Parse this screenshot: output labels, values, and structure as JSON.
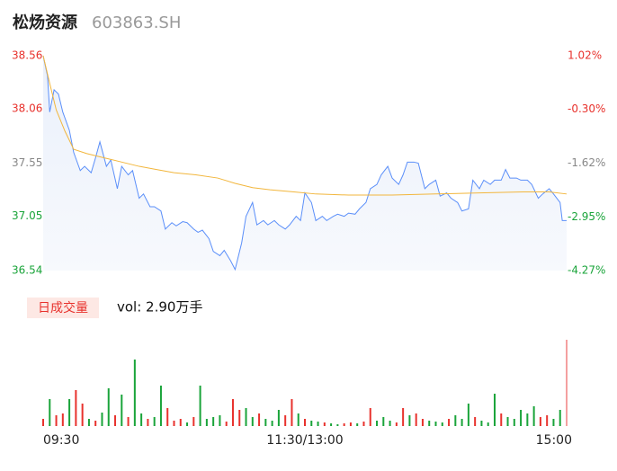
{
  "chart_data": {
    "type": "intraday",
    "title": "松炀资源",
    "subtitle": "603863.SH",
    "xlim": [
      0,
      240
    ],
    "xticks": [
      {
        "value": 0,
        "label": "09:30"
      },
      {
        "value": 120,
        "label": "11:30/13:00"
      },
      {
        "value": 240,
        "label": "15:00"
      }
    ],
    "ylim": [
      36.54,
      38.56
    ],
    "yticks": [
      38.56,
      38.06,
      37.55,
      37.05,
      36.54
    ],
    "y2lim": [
      -4.27,
      1.02
    ],
    "y2ticks": [
      {
        "value": 1.02,
        "label": "1.02%"
      },
      {
        "value": -0.3,
        "label": "-0.30%"
      },
      {
        "value": -1.62,
        "label": "-1.62%"
      },
      {
        "value": -2.95,
        "label": "-2.95%"
      },
      {
        "value": -4.27,
        "label": "-4.27%"
      }
    ],
    "up_color": "#e8322d",
    "down_color": "#1aa43a",
    "flat_color": "#888888",
    "series": [
      {
        "name": "price",
        "color": "#5b8ff9",
        "x": [
          0,
          2,
          3,
          5,
          7,
          9,
          12,
          14,
          17,
          19,
          22,
          24,
          26,
          29,
          31,
          34,
          36,
          39,
          41,
          44,
          46,
          49,
          51,
          54,
          56,
          59,
          61,
          64,
          66,
          69,
          71,
          73,
          76,
          78,
          81,
          83,
          86,
          88,
          91,
          93,
          96,
          98,
          101,
          103,
          106,
          108,
          111,
          113,
          116,
          118,
          120,
          123,
          125,
          128,
          130,
          133,
          135,
          138,
          140,
          143,
          145,
          148,
          150,
          153,
          155,
          158,
          160,
          163,
          165,
          167,
          170,
          172,
          175,
          177,
          180,
          182,
          185,
          187,
          190,
          192,
          195,
          197,
          200,
          202,
          205,
          207,
          210,
          212,
          214,
          217,
          219,
          222,
          224,
          227,
          229,
          232,
          234,
          237,
          238,
          240
        ],
        "values": [
          38.56,
          38.37,
          38.03,
          38.24,
          38.2,
          38.03,
          37.86,
          37.65,
          37.48,
          37.52,
          37.46,
          37.6,
          37.75,
          37.52,
          37.58,
          37.31,
          37.52,
          37.44,
          37.48,
          37.22,
          37.26,
          37.14,
          37.14,
          37.1,
          36.93,
          36.99,
          36.96,
          37.0,
          36.99,
          36.93,
          36.9,
          36.92,
          36.84,
          36.72,
          36.68,
          36.73,
          36.63,
          36.55,
          36.8,
          37.05,
          37.18,
          36.97,
          37.01,
          36.97,
          37.01,
          36.97,
          36.93,
          36.97,
          37.05,
          37.01,
          37.27,
          37.18,
          37.01,
          37.05,
          37.01,
          37.05,
          37.07,
          37.05,
          37.08,
          37.07,
          37.12,
          37.18,
          37.31,
          37.35,
          37.44,
          37.52,
          37.41,
          37.35,
          37.44,
          37.56,
          37.56,
          37.55,
          37.31,
          37.35,
          37.39,
          37.24,
          37.27,
          37.22,
          37.18,
          37.1,
          37.12,
          37.39,
          37.31,
          37.39,
          37.35,
          37.39,
          37.39,
          37.49,
          37.41,
          37.41,
          37.39,
          37.39,
          37.35,
          37.22,
          37.26,
          37.31,
          37.26,
          37.18,
          37.01,
          37.01
        ]
      },
      {
        "name": "average",
        "color": "#f2b63c",
        "x": [
          0,
          3,
          6,
          10,
          14,
          20,
          28,
          36,
          44,
          52,
          60,
          70,
          80,
          88,
          96,
          104,
          115,
          125,
          140,
          160,
          180,
          200,
          220,
          232,
          240
        ],
        "values": [
          38.56,
          38.3,
          38.05,
          37.85,
          37.68,
          37.64,
          37.6,
          37.56,
          37.52,
          37.49,
          37.46,
          37.44,
          37.41,
          37.36,
          37.32,
          37.3,
          37.28,
          37.26,
          37.25,
          37.25,
          37.26,
          37.27,
          37.28,
          37.28,
          37.26
        ]
      }
    ],
    "legend": {
      "label": "日成交量",
      "text": "vol: 2.90万手"
    },
    "volume": {
      "x": [
        0,
        3,
        6,
        9,
        12,
        15,
        18,
        21,
        24,
        27,
        30,
        33,
        36,
        39,
        42,
        45,
        48,
        51,
        54,
        57,
        60,
        63,
        66,
        69,
        72,
        75,
        78,
        81,
        84,
        87,
        90,
        93,
        96,
        99,
        102,
        105,
        108,
        111,
        114,
        117,
        120,
        123,
        126,
        129,
        132,
        135,
        138,
        141,
        144,
        147,
        150,
        153,
        156,
        159,
        162,
        165,
        168,
        171,
        174,
        177,
        180,
        183,
        186,
        189,
        192,
        195,
        198,
        201,
        204,
        207,
        210,
        213,
        216,
        219,
        222,
        225,
        228,
        231,
        234,
        237,
        240
      ],
      "values": [
        8,
        30,
        12,
        14,
        30,
        40,
        25,
        8,
        6,
        15,
        42,
        12,
        35,
        10,
        74,
        14,
        8,
        10,
        45,
        20,
        6,
        8,
        4,
        10,
        45,
        8,
        10,
        12,
        5,
        30,
        18,
        20,
        10,
        14,
        8,
        6,
        18,
        12,
        30,
        14,
        8,
        6,
        5,
        4,
        3,
        2,
        3,
        4,
        3,
        5,
        20,
        6,
        10,
        6,
        4,
        20,
        12,
        14,
        8,
        6,
        5,
        4,
        8,
        12,
        8,
        25,
        10,
        6,
        4,
        36,
        14,
        10,
        8,
        18,
        14,
        22,
        10,
        12,
        8,
        18,
        96
      ],
      "colors": [
        "#e8322d",
        "#1aa43a",
        "#e8322d",
        "#e8322d",
        "#1aa43a",
        "#e8322d",
        "#e8322d",
        "#1aa43a",
        "#e8322d",
        "#1aa43a",
        "#1aa43a",
        "#e8322d",
        "#1aa43a",
        "#e8322d",
        "#1aa43a",
        "#1aa43a",
        "#e8322d",
        "#1aa43a",
        "#1aa43a",
        "#e8322d",
        "#e8322d",
        "#e8322d",
        "#1aa43a",
        "#e8322d",
        "#1aa43a",
        "#1aa43a",
        "#1aa43a",
        "#1aa43a",
        "#e8322d",
        "#e8322d",
        "#e8322d",
        "#1aa43a",
        "#1aa43a",
        "#e8322d",
        "#1aa43a",
        "#1aa43a",
        "#1aa43a",
        "#e8322d",
        "#e8322d",
        "#1aa43a",
        "#e8322d",
        "#1aa43a",
        "#1aa43a",
        "#e8322d",
        "#1aa43a",
        "#1aa43a",
        "#e8322d",
        "#e8322d",
        "#1aa43a",
        "#e8322d",
        "#e8322d",
        "#1aa43a",
        "#1aa43a",
        "#1aa43a",
        "#e8322d",
        "#e8322d",
        "#1aa43a",
        "#e8322d",
        "#e8322d",
        "#1aa43a",
        "#1aa43a",
        "#1aa43a",
        "#e8322d",
        "#1aa43a",
        "#1aa43a",
        "#1aa43a",
        "#e8322d",
        "#1aa43a",
        "#1aa43a",
        "#1aa43a",
        "#e8322d",
        "#1aa43a",
        "#1aa43a",
        "#1aa43a",
        "#1aa43a",
        "#1aa43a",
        "#e8322d",
        "#e8322d",
        "#1aa43a",
        "#1aa43a",
        "#f4a0a0"
      ]
    }
  }
}
